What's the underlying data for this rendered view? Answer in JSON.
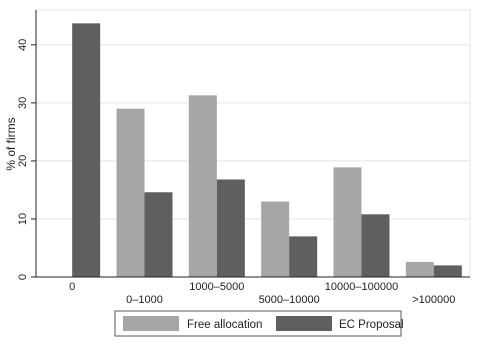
{
  "chart_data": {
    "type": "bar",
    "title": "",
    "xlabel": "",
    "ylabel": "% of firms",
    "ylim": [
      0,
      46
    ],
    "yticks": [
      0,
      10,
      20,
      30,
      40
    ],
    "grid": "horizontal",
    "legend_position": "bottom",
    "categories": [
      "0",
      "0–1000",
      "1000–5000",
      "5000–10000",
      "10000–100000",
      ">100000"
    ],
    "series": [
      {
        "name": "Free allocation",
        "color": "#a6a6a6",
        "values": [
          0,
          29.0,
          31.3,
          13.0,
          18.9,
          2.6
        ]
      },
      {
        "name": "EC Proposal",
        "color": "#5f5f5f",
        "values": [
          43.7,
          14.6,
          16.8,
          7.0,
          10.8,
          2.0
        ]
      }
    ]
  }
}
